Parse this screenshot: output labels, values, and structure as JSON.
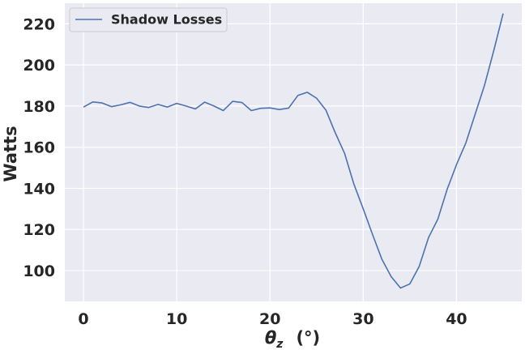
{
  "chart_data": {
    "type": "line",
    "xlabel_symbol": "θ",
    "xlabel_subscript": "z",
    "xlabel_unit": "(°)",
    "ylabel": "Watts",
    "xlim": [
      -2,
      47
    ],
    "ylim": [
      85,
      230
    ],
    "xticks": [
      0,
      10,
      20,
      30,
      40
    ],
    "yticks": [
      100,
      120,
      140,
      160,
      180,
      200,
      220
    ],
    "grid": true,
    "legend_position": "top-left",
    "series": [
      {
        "name": "Shadow Losses",
        "color": "#4c72b0",
        "x": [
          0,
          1,
          2,
          3,
          4,
          5,
          6,
          7,
          8,
          9,
          10,
          11,
          12,
          13,
          14,
          15,
          16,
          17,
          18,
          19,
          20,
          21,
          22,
          23,
          24,
          25,
          26,
          27,
          28,
          29,
          30,
          31,
          32,
          33,
          34,
          35,
          36,
          37,
          38,
          39,
          40,
          41,
          42,
          43,
          44,
          45
        ],
        "y": [
          179.5,
          182.0,
          181.5,
          179.7,
          180.6,
          181.8,
          180.0,
          179.3,
          180.8,
          179.5,
          181.3,
          180.0,
          178.6,
          181.9,
          180.0,
          177.8,
          182.3,
          181.7,
          177.8,
          178.9,
          179.1,
          178.3,
          179.0,
          185.2,
          186.7,
          183.8,
          178.0,
          167.0,
          157.0,
          142.0,
          130.0,
          117.5,
          105.5,
          97.0,
          91.5,
          93.5,
          102.0,
          116.0,
          125.0,
          139.5,
          151.5,
          162.0,
          176.0,
          190.0,
          207.0,
          225.0
        ]
      }
    ]
  }
}
